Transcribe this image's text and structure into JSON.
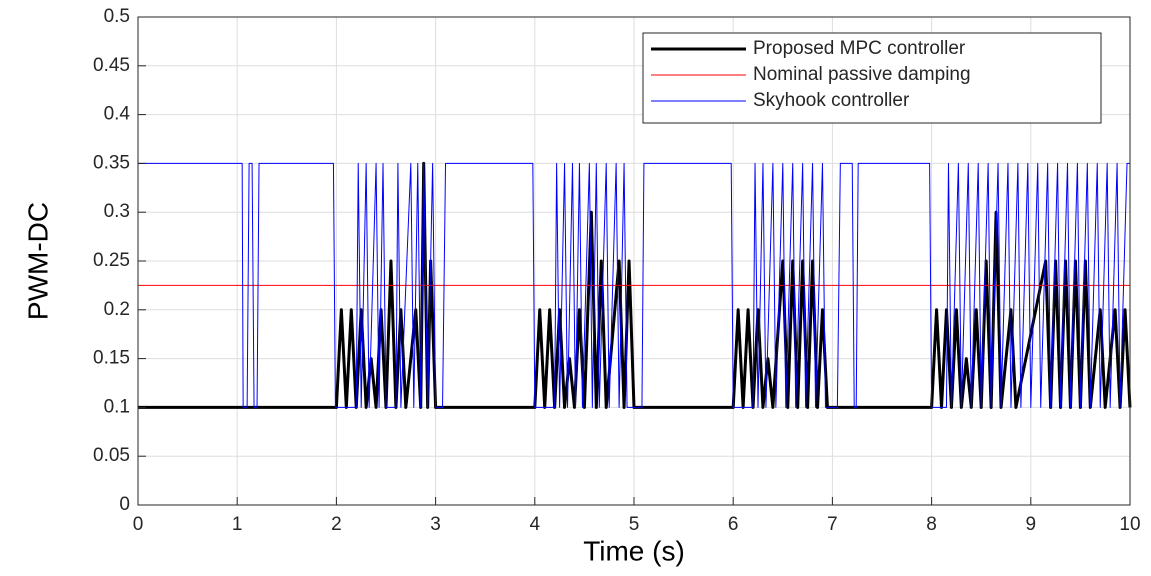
{
  "chart_data": {
    "type": "line",
    "xlabel": "Time (s)",
    "ylabel": "PWM-DC",
    "xlim": [
      0,
      10
    ],
    "xticks": [
      0,
      1,
      2,
      3,
      4,
      5,
      6,
      7,
      8,
      9,
      10
    ],
    "ylim": [
      0,
      0.5
    ],
    "yticks": [
      0,
      0.05,
      0.1,
      0.15,
      0.2,
      0.25,
      0.3,
      0.35,
      0.4,
      0.45,
      0.5
    ],
    "grid": true,
    "legend": "upper right",
    "series": [
      {
        "name": "Proposed MPC controller",
        "color": "#000000",
        "width": 3,
        "x": [
          0,
          2.0,
          2.05,
          2.1,
          2.15,
          2.2,
          2.25,
          2.3,
          2.35,
          2.4,
          2.45,
          2.5,
          2.55,
          2.6,
          2.65,
          2.7,
          2.8,
          2.85,
          2.88,
          2.92,
          2.95,
          3.0,
          4.0,
          4.05,
          4.1,
          4.15,
          4.2,
          4.25,
          4.3,
          4.35,
          4.4,
          4.45,
          4.5,
          4.57,
          4.62,
          4.67,
          4.72,
          4.85,
          4.9,
          4.95,
          5.0,
          6.0,
          6.05,
          6.1,
          6.15,
          6.2,
          6.25,
          6.3,
          6.35,
          6.4,
          6.5,
          6.55,
          6.6,
          6.65,
          6.7,
          6.75,
          6.8,
          6.85,
          6.9,
          6.95,
          8.0,
          8.05,
          8.1,
          8.15,
          8.2,
          8.25,
          8.3,
          8.35,
          8.4,
          8.45,
          8.5,
          8.55,
          8.6,
          8.65,
          8.7,
          8.8,
          8.85,
          9.15,
          9.2,
          9.25,
          9.3,
          9.35,
          9.4,
          9.45,
          9.5,
          9.55,
          9.6,
          9.7,
          9.75,
          9.85,
          9.9,
          9.95,
          10
        ],
        "values": [
          0.1,
          0.1,
          0.2,
          0.1,
          0.2,
          0.1,
          0.2,
          0.1,
          0.15,
          0.1,
          0.2,
          0.1,
          0.25,
          0.1,
          0.2,
          0.1,
          0.2,
          0.1,
          0.35,
          0.1,
          0.25,
          0.1,
          0.1,
          0.2,
          0.1,
          0.2,
          0.1,
          0.2,
          0.1,
          0.15,
          0.1,
          0.2,
          0.1,
          0.3,
          0.1,
          0.25,
          0.1,
          0.25,
          0.1,
          0.25,
          0.1,
          0.1,
          0.2,
          0.1,
          0.2,
          0.1,
          0.2,
          0.1,
          0.15,
          0.1,
          0.25,
          0.1,
          0.25,
          0.1,
          0.25,
          0.1,
          0.25,
          0.1,
          0.2,
          0.1,
          0.1,
          0.2,
          0.1,
          0.2,
          0.1,
          0.2,
          0.1,
          0.15,
          0.1,
          0.2,
          0.1,
          0.25,
          0.1,
          0.3,
          0.1,
          0.2,
          0.1,
          0.25,
          0.1,
          0.25,
          0.1,
          0.25,
          0.1,
          0.25,
          0.1,
          0.25,
          0.1,
          0.2,
          0.1,
          0.2,
          0.1,
          0.2,
          0.1
        ]
      },
      {
        "name": "Nominal passive damping",
        "color": "#ff0000",
        "width": 1,
        "x": [
          0,
          10
        ],
        "values": [
          0.225,
          0.225
        ]
      },
      {
        "name": "Skyhook controller",
        "color": "#0000ff",
        "width": 1,
        "x": [
          0,
          1.05,
          1.06,
          1.1,
          1.12,
          1.15,
          1.17,
          1.2,
          1.22,
          1.97,
          1.99,
          2.2,
          2.22,
          2.25,
          2.3,
          2.33,
          2.4,
          2.43,
          2.47,
          2.5,
          2.6,
          2.62,
          2.65,
          2.75,
          2.78,
          2.82,
          2.85,
          2.88,
          2.92,
          2.97,
          3.0,
          3.07,
          3.1,
          3.98,
          4.0,
          4.2,
          4.22,
          4.25,
          4.3,
          4.33,
          4.38,
          4.41,
          4.45,
          4.48,
          4.55,
          4.58,
          4.62,
          4.65,
          4.72,
          4.75,
          4.82,
          4.85,
          4.9,
          4.93,
          5.08,
          5.1,
          5.98,
          6.0,
          6.2,
          6.22,
          6.25,
          6.3,
          6.33,
          6.4,
          6.43,
          6.5,
          6.53,
          6.6,
          6.63,
          6.7,
          6.73,
          6.8,
          6.83,
          6.9,
          6.93,
          7.05,
          7.08,
          7.2,
          7.22,
          7.24,
          7.26,
          7.98,
          8.0,
          8.15,
          8.17,
          8.2,
          8.27,
          8.3,
          8.37,
          8.4,
          8.47,
          8.5,
          8.57,
          8.6,
          8.67,
          8.7,
          8.77,
          8.8,
          8.87,
          8.9,
          8.97,
          9.0,
          9.07,
          9.1,
          9.17,
          9.2,
          9.27,
          9.3,
          9.37,
          9.4,
          9.47,
          9.5,
          9.57,
          9.6,
          9.67,
          9.7,
          9.77,
          9.8,
          9.87,
          9.9,
          9.97,
          10
        ],
        "values": [
          0.35,
          0.35,
          0.1,
          0.1,
          0.35,
          0.35,
          0.1,
          0.1,
          0.35,
          0.35,
          0.1,
          0.1,
          0.35,
          0.1,
          0.35,
          0.1,
          0.35,
          0.1,
          0.35,
          0.1,
          0.1,
          0.35,
          0.1,
          0.35,
          0.1,
          0.35,
          0.1,
          0.35,
          0.1,
          0.35,
          0.1,
          0.1,
          0.35,
          0.35,
          0.1,
          0.1,
          0.35,
          0.1,
          0.35,
          0.1,
          0.35,
          0.1,
          0.35,
          0.1,
          0.35,
          0.1,
          0.35,
          0.1,
          0.35,
          0.1,
          0.35,
          0.1,
          0.35,
          0.1,
          0.1,
          0.35,
          0.35,
          0.1,
          0.1,
          0.35,
          0.1,
          0.35,
          0.1,
          0.35,
          0.1,
          0.35,
          0.1,
          0.35,
          0.1,
          0.35,
          0.1,
          0.35,
          0.1,
          0.35,
          0.1,
          0.1,
          0.35,
          0.35,
          0.1,
          0.1,
          0.35,
          0.35,
          0.1,
          0.1,
          0.35,
          0.1,
          0.35,
          0.1,
          0.35,
          0.1,
          0.35,
          0.1,
          0.35,
          0.1,
          0.35,
          0.1,
          0.35,
          0.1,
          0.35,
          0.1,
          0.35,
          0.1,
          0.35,
          0.1,
          0.35,
          0.1,
          0.35,
          0.1,
          0.35,
          0.1,
          0.35,
          0.1,
          0.35,
          0.1,
          0.35,
          0.1,
          0.35,
          0.1,
          0.35,
          0.1,
          0.35,
          0.35
        ]
      }
    ]
  }
}
